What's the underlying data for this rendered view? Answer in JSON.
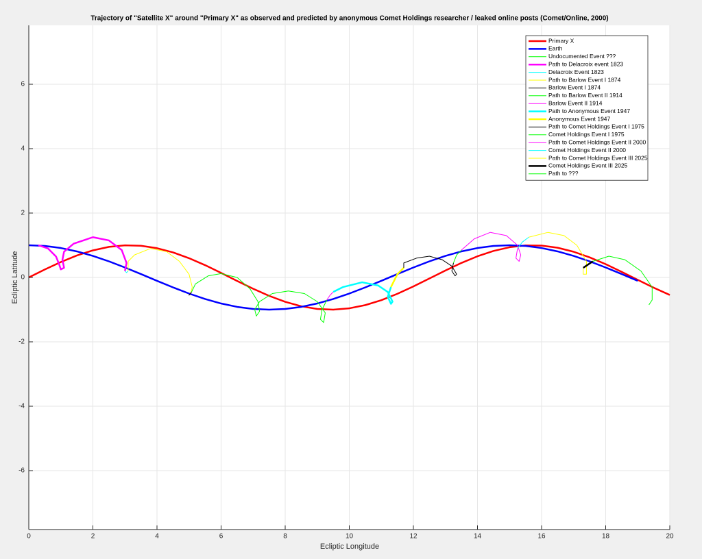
{
  "chart_data": {
    "type": "line",
    "title": "Trajectory of \"Satellite X\" around \"Primary X\" as observed and predicted by anonymous Comet Holdings researcher / leaked online posts (Comet/Online, 2000)",
    "x_label": "Ecliptic Longitude",
    "y_label": "Ecliptic Latitude",
    "xlim": [
      0,
      20
    ],
    "ylim": [
      -7.83,
      7.83
    ],
    "xticks": [
      0,
      2,
      4,
      6,
      8,
      10,
      12,
      14,
      16,
      18,
      20
    ],
    "yticks": [
      -6,
      -4,
      -2,
      0,
      2,
      4,
      6
    ],
    "grid": true,
    "legend": "upper right",
    "series": [
      {
        "name": "Primary X",
        "color": "#ff0000",
        "width": 2.5,
        "x": [
          0,
          0.5,
          1,
          1.5,
          2,
          2.5,
          3,
          3.5,
          4,
          4.5,
          5,
          5.5,
          6,
          6.5,
          7,
          7.5,
          8,
          8.5,
          9,
          9.5,
          10,
          10.5,
          11,
          11.5,
          12,
          12.5,
          13,
          13.5,
          14,
          14.5,
          15,
          15.5,
          16,
          16.5,
          17,
          17.5,
          18,
          18.5,
          19,
          19.5,
          20
        ],
        "values": [
          0,
          0.247,
          0.479,
          0.682,
          0.841,
          0.949,
          0.997,
          0.984,
          0.909,
          0.778,
          0.598,
          0.382,
          0.141,
          -0.108,
          -0.351,
          -0.572,
          -0.757,
          -0.895,
          -0.978,
          -0.999,
          -0.959,
          -0.859,
          -0.706,
          -0.508,
          -0.279,
          -0.033,
          0.215,
          0.451,
          0.657,
          0.823,
          0.938,
          0.995,
          0.989,
          0.923,
          0.798,
          0.624,
          0.412,
          0.174,
          -0.075,
          -0.319,
          -0.544
        ]
      },
      {
        "name": "Earth",
        "color": "#0000ff",
        "width": 2.5,
        "x": [
          0,
          0.5,
          1,
          1.5,
          2,
          2.5,
          3,
          3.5,
          4,
          4.5,
          5,
          5.5,
          6,
          6.5,
          7,
          7.5,
          8,
          8.5,
          9,
          9.5,
          10,
          10.5,
          11,
          11.5,
          12,
          12.5,
          13,
          13.5,
          14,
          14.5,
          15,
          15.5,
          16,
          16.5,
          17,
          17.5,
          18,
          18.5,
          19
        ],
        "values": [
          1,
          0.978,
          0.914,
          0.809,
          0.669,
          0.5,
          0.309,
          0.105,
          -0.105,
          -0.309,
          -0.5,
          -0.669,
          -0.809,
          -0.914,
          -0.978,
          -1,
          -0.978,
          -0.914,
          -0.809,
          -0.669,
          -0.5,
          -0.309,
          -0.105,
          0.105,
          0.309,
          0.5,
          0.669,
          0.809,
          0.914,
          0.978,
          1,
          0.978,
          0.914,
          0.809,
          0.669,
          0.5,
          0.309,
          0.105,
          -0.105
        ]
      },
      {
        "name": "Undocumented Event ???",
        "color": "#00ff00",
        "width": 1,
        "x": [
          7.2,
          7.6,
          8.1,
          8.6,
          9.0,
          9.25,
          9.2,
          9.1,
          9.15,
          9.3
        ],
        "values": [
          -0.75,
          -0.5,
          -0.42,
          -0.5,
          -0.75,
          -1.1,
          -1.4,
          -1.3,
          -1.0,
          -0.7
        ]
      },
      {
        "name": "Path to Delacroix event 1823",
        "color": "#ff00ff",
        "width": 2.5,
        "x": [
          0.3,
          0.6,
          0.85,
          0.95,
          1.0,
          1.1,
          1.05,
          1.1,
          1.4,
          2.0,
          2.5,
          2.9,
          3.05,
          3.0
        ],
        "values": [
          1.0,
          0.9,
          0.65,
          0.4,
          0.25,
          0.3,
          0.55,
          0.8,
          1.05,
          1.25,
          1.15,
          0.85,
          0.45,
          0.2
        ]
      },
      {
        "name": "Delacroix Event 1823",
        "color": "#00ffff",
        "width": 1,
        "x": [
          3.0,
          3.05,
          3.1
        ],
        "values": [
          0.2,
          0.15,
          0.2
        ]
      },
      {
        "name": "Path to Barlow Event I 1874",
        "color": "#ffff00",
        "width": 1,
        "x": [
          3.1,
          3.1,
          3.3,
          3.8,
          4.3,
          4.7,
          5.0,
          5.1,
          5.05
        ],
        "values": [
          0.2,
          0.5,
          0.7,
          0.9,
          0.8,
          0.5,
          0.1,
          -0.3,
          -0.5
        ]
      },
      {
        "name": "Barlow Event I 1874",
        "color": "#000000",
        "width": 1,
        "x": [
          5.05,
          5.0,
          5.08
        ],
        "values": [
          -0.5,
          -0.55,
          -0.45
        ]
      },
      {
        "name": "Path to Barlow Event II 1914",
        "color": "#00ff00",
        "width": 1,
        "x": [
          5.08,
          5.2,
          5.6,
          6.0,
          6.5,
          6.9,
          7.15,
          7.2,
          7.1,
          7.05,
          7.2
        ],
        "values": [
          -0.45,
          -0.2,
          0.05,
          0.12,
          0.0,
          -0.35,
          -0.75,
          -1.05,
          -1.2,
          -1.0,
          -0.75
        ]
      },
      {
        "name": "Barlow Event II 1914",
        "color": "#ff00ff",
        "width": 1,
        "x": [
          9.3,
          9.4,
          9.5
        ],
        "values": [
          -0.7,
          -0.55,
          -0.45
        ]
      },
      {
        "name": "Path to Anonymous Event 1947",
        "color": "#00ffff",
        "width": 2.5,
        "x": [
          9.5,
          9.8,
          10.4,
          10.9,
          11.2,
          11.35,
          11.3,
          11.2,
          11.3
        ],
        "values": [
          -0.45,
          -0.3,
          -0.15,
          -0.25,
          -0.45,
          -0.75,
          -0.82,
          -0.6,
          -0.3
        ]
      },
      {
        "name": "Anonymous Event 1947",
        "color": "#ffff00",
        "width": 2.5,
        "x": [
          11.3,
          11.5,
          11.7
        ],
        "values": [
          -0.3,
          0.1,
          0.3
        ]
      },
      {
        "name": "Path to Comet Holdings Event I 1975",
        "color": "#000000",
        "width": 1,
        "x": [
          11.7,
          11.7,
          12.1,
          12.5,
          12.9,
          13.2,
          13.35,
          13.3,
          13.2,
          13.25
        ],
        "values": [
          0.3,
          0.45,
          0.6,
          0.66,
          0.55,
          0.35,
          0.1,
          0.05,
          0.2,
          0.45
        ]
      },
      {
        "name": "Comet Holdings Event I 1975",
        "color": "#00ff00",
        "width": 1,
        "x": [
          13.25,
          13.35,
          13.5
        ],
        "values": [
          0.45,
          0.7,
          0.85
        ]
      },
      {
        "name": "Path to Comet Holdings Event II 2000",
        "color": "#ff00ff",
        "width": 1,
        "x": [
          13.5,
          13.9,
          14.4,
          14.9,
          15.25,
          15.35,
          15.3,
          15.2,
          15.25
        ],
        "values": [
          0.85,
          1.2,
          1.4,
          1.3,
          1.0,
          0.7,
          0.5,
          0.6,
          0.9
        ]
      },
      {
        "name": "Comet Holdings Event II 2000",
        "color": "#00ffff",
        "width": 1,
        "x": [
          15.25,
          15.4,
          15.6
        ],
        "values": [
          0.9,
          1.1,
          1.25
        ]
      },
      {
        "name": "Path to Comet Holdings Event III 2025",
        "color": "#ffff00",
        "width": 1,
        "x": [
          15.6,
          16.2,
          16.7,
          17.1,
          17.4,
          17.4,
          17.3,
          17.3
        ],
        "values": [
          1.25,
          1.4,
          1.3,
          1.0,
          0.5,
          0.1,
          0.1,
          0.3
        ]
      },
      {
        "name": "Comet Holdings Event III 2025",
        "color": "#000000",
        "width": 2.5,
        "x": [
          17.3,
          17.45,
          17.6
        ],
        "values": [
          0.3,
          0.4,
          0.5
        ]
      },
      {
        "name": "Path to ???",
        "color": "#00ff00",
        "width": 1,
        "x": [
          17.6,
          18.1,
          18.6,
          19.1,
          19.45,
          19.45,
          19.35
        ],
        "values": [
          0.5,
          0.66,
          0.55,
          0.2,
          -0.3,
          -0.7,
          -0.85
        ]
      }
    ]
  }
}
